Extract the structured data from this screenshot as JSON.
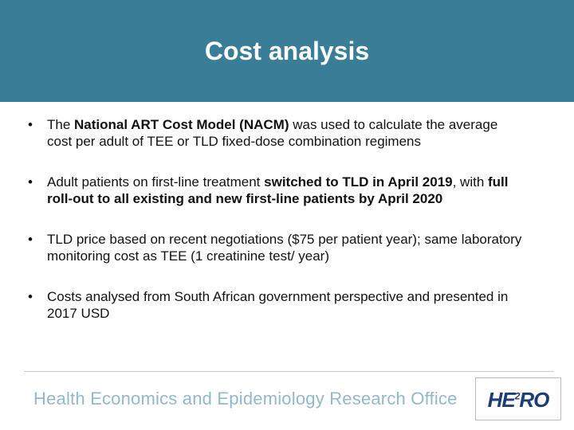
{
  "header": {
    "title": "Cost analysis"
  },
  "bullets": [
    [
      {
        "text": "The ",
        "bold": false
      },
      {
        "text": "National ART Cost Model (NACM)",
        "bold": true
      },
      {
        "text": " was used to calculate the average cost per adult of TEE or TLD fixed-dose combination regimens",
        "bold": false
      }
    ],
    [
      {
        "text": "Adult patients on first-line treatment ",
        "bold": false
      },
      {
        "text": "switched to TLD in April 2019",
        "bold": true
      },
      {
        "text": ", with ",
        "bold": false
      },
      {
        "text": "full roll-out to all existing and new first-line patients by April 2020",
        "bold": true
      }
    ],
    [
      {
        "text": "TLD price based on recent negotiations ($75 per patient year); same laboratory monitoring cost as TEE (1 creatinine test/ year)",
        "bold": false
      }
    ],
    [
      {
        "text": "Costs analysed from South African government perspective and presented in 2017 USD",
        "bold": false
      }
    ]
  ],
  "footer": {
    "organization": "Health Economics and Epidemiology Research Office",
    "logo": {
      "left": "HE",
      "superscript": "2",
      "right": "RO"
    }
  }
}
